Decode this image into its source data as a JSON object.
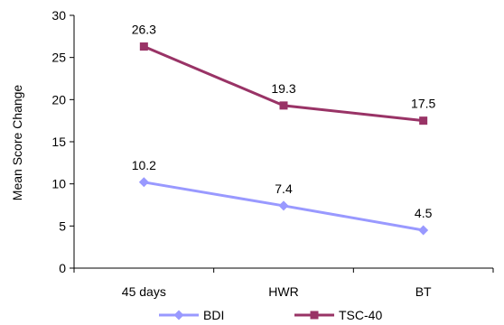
{
  "chart_data": {
    "type": "line",
    "categories": [
      "45 days",
      "HWR",
      "BT"
    ],
    "series": [
      {
        "name": "BDI",
        "values": [
          10.2,
          7.4,
          4.5
        ],
        "color": "#9999ff",
        "marker": "diamond"
      },
      {
        "name": "TSC-40",
        "values": [
          26.3,
          19.3,
          17.5
        ],
        "color": "#993366",
        "marker": "square"
      }
    ],
    "title": "",
    "xlabel": "",
    "ylabel": "Mean Score Change",
    "ylim": [
      0,
      30
    ],
    "yticks": [
      0,
      5,
      10,
      15,
      20,
      25,
      30
    ],
    "data_labels": {
      "BDI": [
        "10.2",
        "7.4",
        "4.5"
      ],
      "TSC-40": [
        "26.3",
        "19.3",
        "17.5"
      ]
    },
    "grid": false,
    "legend_position": "bottom"
  }
}
